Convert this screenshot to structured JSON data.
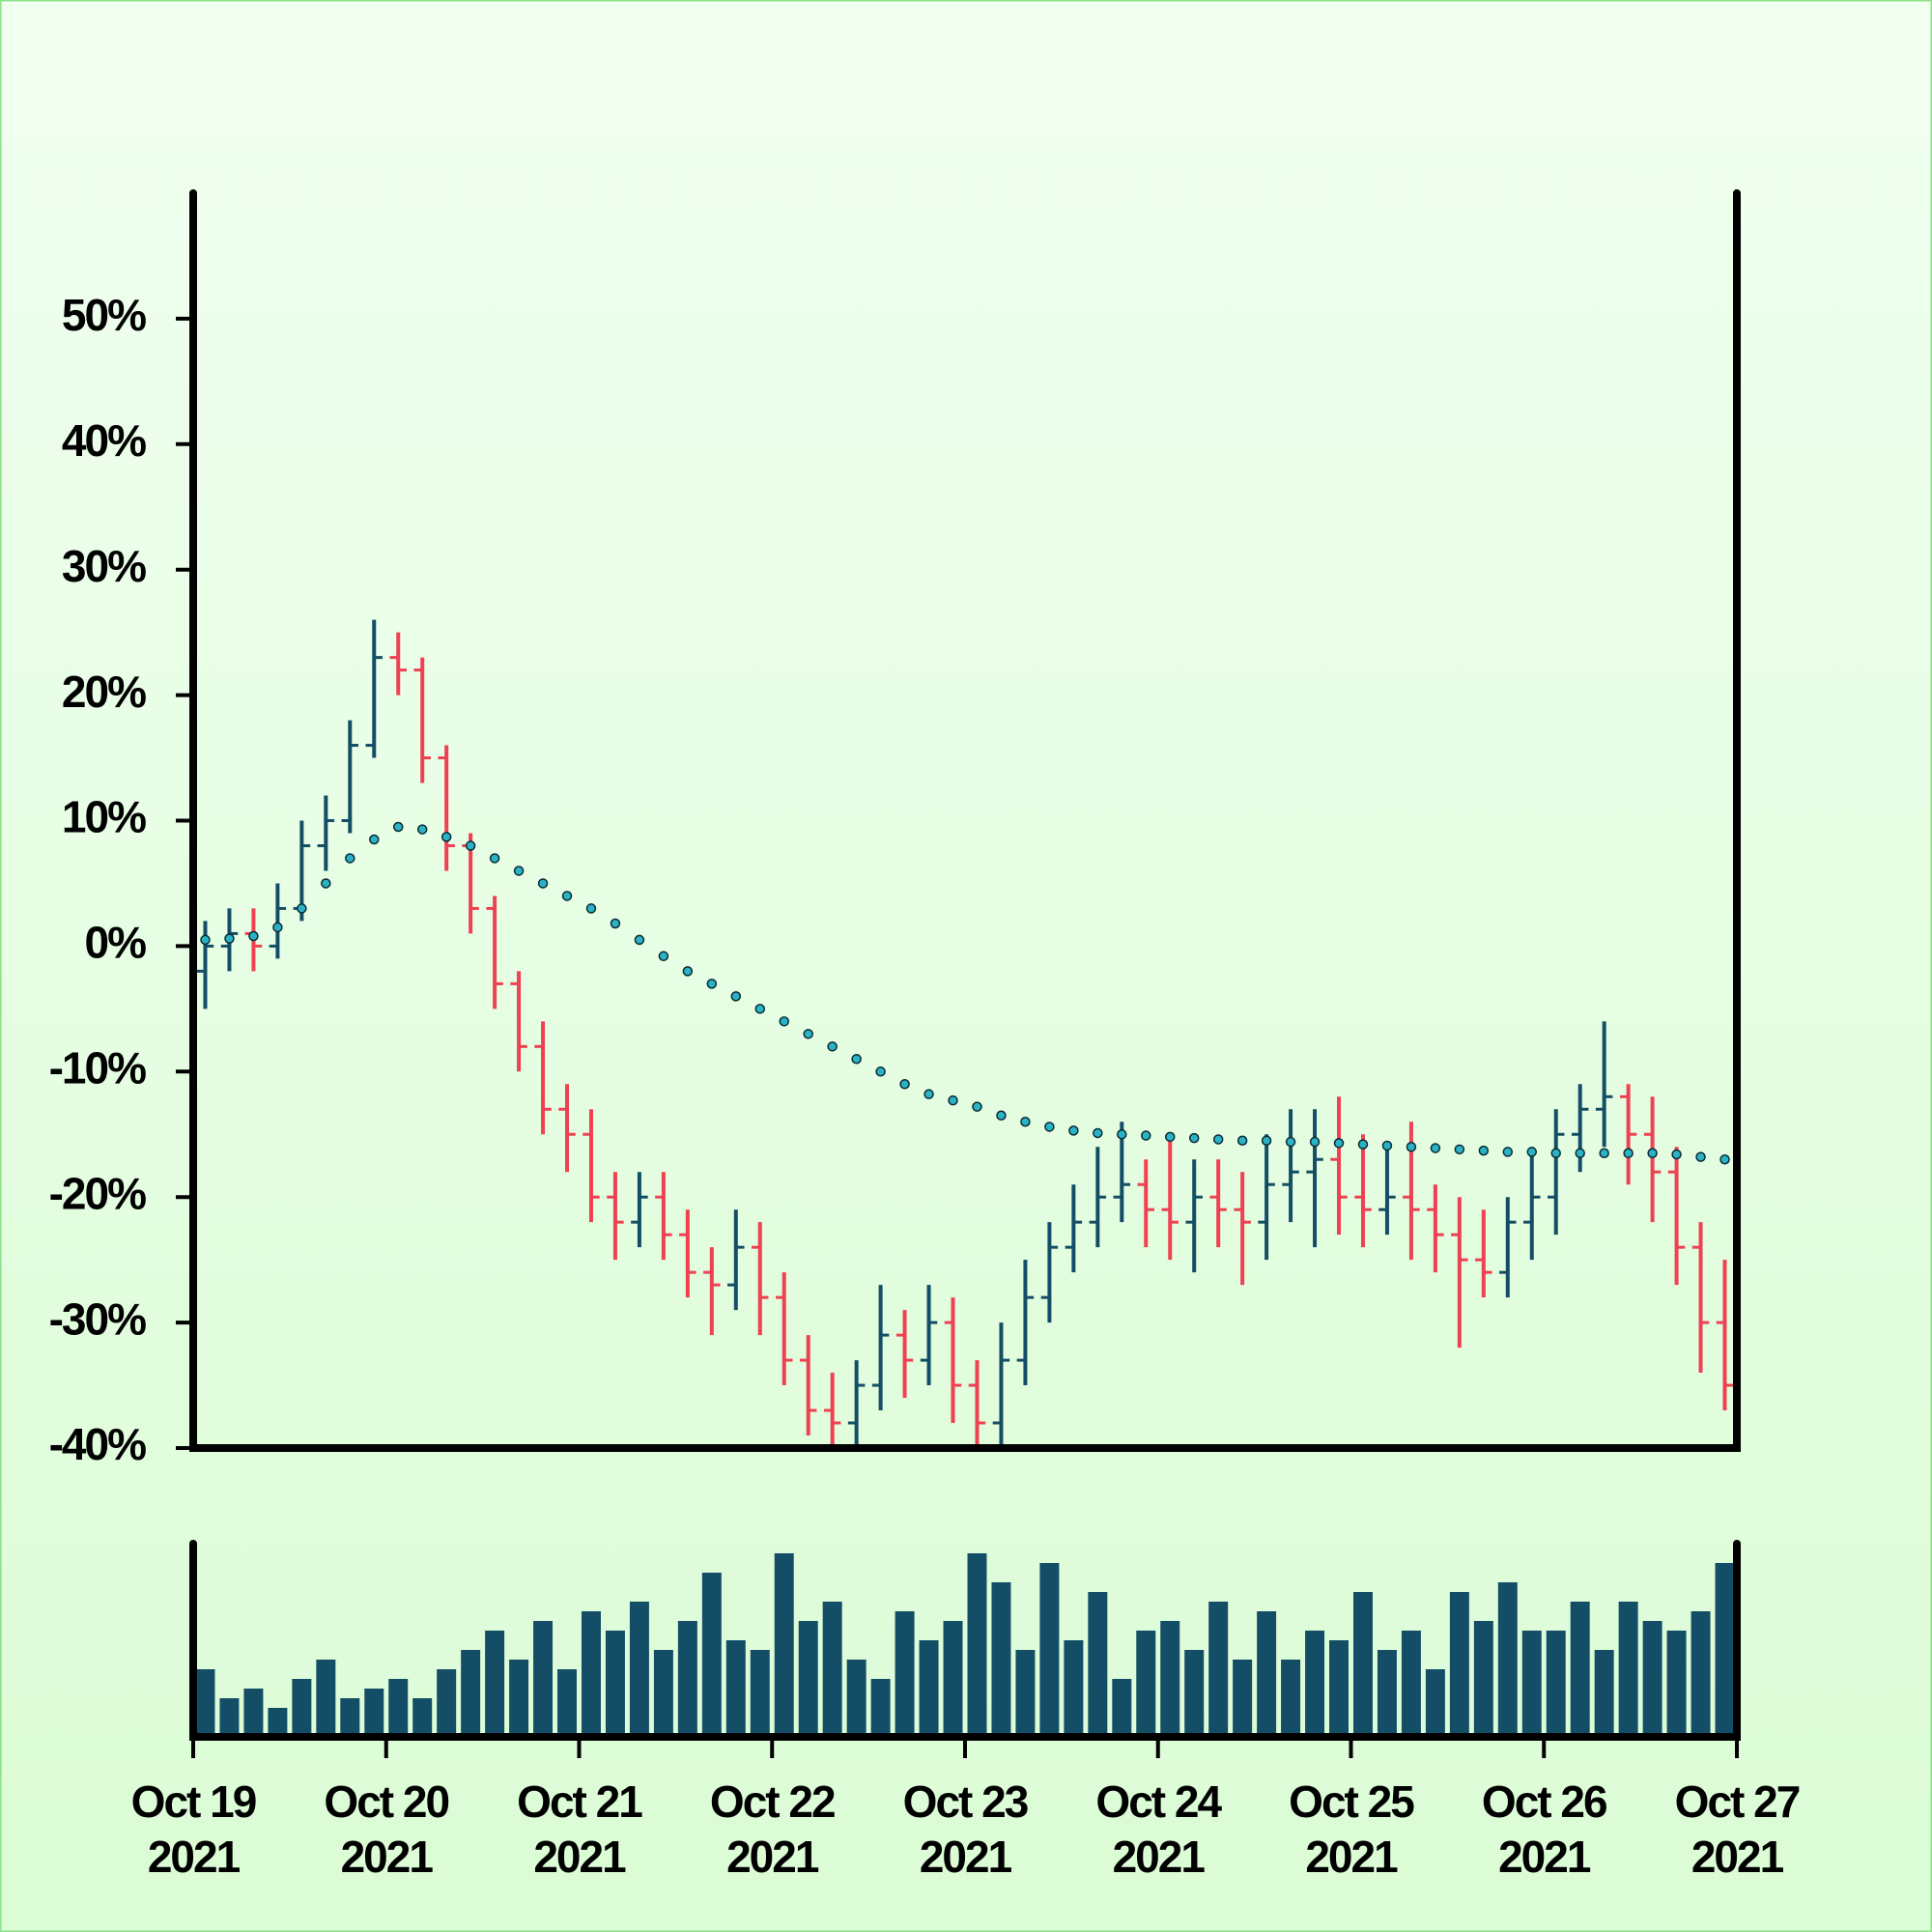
{
  "chart_data": [
    {
      "type": "ohlc",
      "up_color": "#134e66",
      "down_color": "#ee4152",
      "open": [
        -2,
        0,
        1,
        0,
        3,
        8,
        10,
        16,
        23,
        22,
        15,
        8,
        3,
        -3,
        -8,
        -13,
        -15,
        -20,
        -22,
        -20,
        -23,
        -26,
        -27,
        -24,
        -28,
        -33,
        -37,
        -38,
        -35,
        -31,
        -33,
        -30,
        -35,
        -38,
        -33,
        -28,
        -24,
        -22,
        -20,
        -19,
        -21,
        -22,
        -20,
        -21,
        -22,
        -19,
        -18,
        -17,
        -20,
        -21,
        -20,
        -21,
        -23,
        -25,
        -26,
        -22,
        -20,
        -15,
        -13,
        -12,
        -15,
        -18,
        -24,
        -30
      ],
      "high": [
        2,
        3,
        3,
        5,
        10,
        12,
        18,
        26,
        25,
        23,
        16,
        9,
        4,
        -2,
        -6,
        -11,
        -13,
        -18,
        -18,
        -18,
        -21,
        -24,
        -21,
        -22,
        -26,
        -31,
        -34,
        -33,
        -27,
        -29,
        -27,
        -28,
        -33,
        -30,
        -25,
        -22,
        -19,
        -16,
        -14,
        -17,
        -15,
        -17,
        -17,
        -18,
        -15,
        -13,
        -13,
        -12,
        -15,
        -16,
        -14,
        -19,
        -20,
        -21,
        -20,
        -16,
        -13,
        -11,
        -6,
        -11,
        -12,
        -16,
        -22,
        -25
      ],
      "low": [
        -5,
        -2,
        -2,
        -1,
        2,
        6,
        9,
        15,
        20,
        13,
        6,
        1,
        -5,
        -10,
        -15,
        -18,
        -22,
        -25,
        -24,
        -25,
        -28,
        -31,
        -29,
        -31,
        -35,
        -39,
        -40,
        -40,
        -37,
        -36,
        -35,
        -38,
        -40,
        -40,
        -35,
        -30,
        -26,
        -24,
        -22,
        -24,
        -25,
        -26,
        -24,
        -27,
        -25,
        -22,
        -24,
        -23,
        -24,
        -23,
        -25,
        -26,
        -32,
        -28,
        -28,
        -25,
        -23,
        -18,
        -16,
        -19,
        -22,
        -27,
        -34,
        -37
      ],
      "close": [
        0,
        1,
        0,
        3,
        8,
        10,
        16,
        23,
        22,
        15,
        8,
        3,
        -3,
        -8,
        -13,
        -15,
        -20,
        -22,
        -20,
        -23,
        -26,
        -27,
        -24,
        -28,
        -33,
        -37,
        -38,
        -35,
        -31,
        -33,
        -30,
        -35,
        -38,
        -33,
        -28,
        -24,
        -22,
        -20,
        -19,
        -21,
        -22,
        -20,
        -21,
        -22,
        -19,
        -18,
        -17,
        -20,
        -21,
        -20,
        -21,
        -23,
        -25,
        -26,
        -22,
        -20,
        -15,
        -13,
        -12,
        -15,
        -18,
        -24,
        -30,
        -35
      ],
      "ma": {
        "color": "#2ab3c4",
        "values": [
          0.5,
          0.6,
          0.8,
          1.5,
          3,
          5,
          7,
          8.5,
          9.5,
          9.3,
          8.7,
          8,
          7,
          6,
          5,
          4,
          3,
          1.8,
          0.5,
          -0.8,
          -2,
          -3,
          -4,
          -5,
          -6,
          -7,
          -8,
          -9,
          -10,
          -11,
          -11.8,
          -12.3,
          -12.8,
          -13.5,
          -14,
          -14.4,
          -14.7,
          -14.9,
          -15,
          -15.1,
          -15.2,
          -15.3,
          -15.4,
          -15.5,
          -15.5,
          -15.6,
          -15.6,
          -15.7,
          -15.8,
          -15.9,
          -16,
          -16.1,
          -16.2,
          -16.3,
          -16.4,
          -16.4,
          -16.5,
          -16.5,
          -16.5,
          -16.5,
          -16.5,
          -16.6,
          -16.8,
          -17
        ]
      },
      "ylim": [
        -40,
        60
      ],
      "yticks": [
        {
          "value": -40,
          "label": "-40%"
        },
        {
          "value": -30,
          "label": "-30%"
        },
        {
          "value": -20,
          "label": "-20%"
        },
        {
          "value": -10,
          "label": "-10%"
        },
        {
          "value": 0,
          "label": "0%"
        },
        {
          "value": 10,
          "label": "10%"
        },
        {
          "value": 20,
          "label": "20%"
        },
        {
          "value": 30,
          "label": "30%"
        },
        {
          "value": 40,
          "label": "40%"
        },
        {
          "value": 50,
          "label": "50%"
        }
      ]
    },
    {
      "type": "bar",
      "color": "#134e66",
      "values": [
        35,
        20,
        25,
        15,
        30,
        40,
        20,
        25,
        30,
        20,
        35,
        45,
        55,
        40,
        60,
        35,
        65,
        55,
        70,
        45,
        60,
        85,
        50,
        45,
        95,
        60,
        70,
        40,
        30,
        65,
        50,
        60,
        95,
        80,
        45,
        90,
        50,
        75,
        30,
        55,
        60,
        45,
        70,
        40,
        65,
        40,
        55,
        50,
        75,
        45,
        55,
        35,
        75,
        60,
        80,
        55,
        55,
        70,
        45,
        70,
        60,
        55,
        65,
        90
      ],
      "ylim": [
        0,
        100
      ],
      "xticks": [
        {
          "label": "Oct 19",
          "year": "2021"
        },
        {
          "label": "Oct 20",
          "year": "2021"
        },
        {
          "label": "Oct 21",
          "year": "2021"
        },
        {
          "label": "Oct 22",
          "year": "2021"
        },
        {
          "label": "Oct 23",
          "year": "2021"
        },
        {
          "label": "Oct 24",
          "year": "2021"
        },
        {
          "label": "Oct 25",
          "year": "2021"
        },
        {
          "label": "Oct 26",
          "year": "2021"
        },
        {
          "label": "Oct 27",
          "year": "2021"
        }
      ]
    }
  ]
}
